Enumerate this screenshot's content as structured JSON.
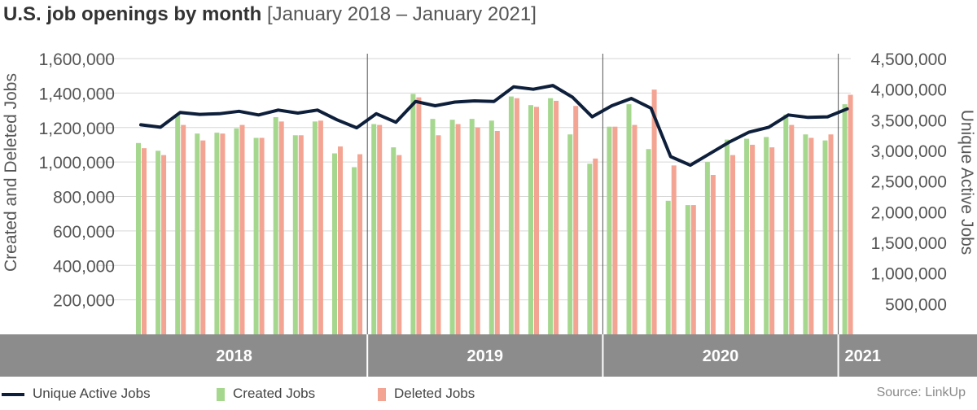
{
  "title": {
    "bold": "U.S. job openings by month",
    "light": "[January 2018 – January 2021]"
  },
  "source": "Source: LinkUp",
  "colors": {
    "created": "#a6d78f",
    "deleted": "#f4a492",
    "line": "#0e1f3b",
    "band": "#8c8c8c",
    "grid": "#d6d6d6",
    "text": "#555555"
  },
  "legend": {
    "line": "Unique Active Jobs",
    "created": "Created Jobs",
    "deleted": "Deleted Jobs"
  },
  "chart_data": {
    "type": "bar",
    "title": "U.S. job openings by month [January 2018 – January 2021]",
    "ylabel": "Created and Deleted Jobs",
    "y2label": "Unique Active Jobs",
    "ylim": [
      0,
      1600000
    ],
    "y2lim": [
      0,
      4500000
    ],
    "yticks": [
      "200,000",
      "400,000",
      "600,000",
      "800,000",
      "1,000,000",
      "1,200,000",
      "1,400,000",
      "1,600,000"
    ],
    "ytick_values": [
      200000,
      400000,
      600000,
      800000,
      1000000,
      1200000,
      1400000,
      1600000
    ],
    "y2ticks": [
      "500,000",
      "1,000,000",
      "1,500,000",
      "2,000,000",
      "2,500,000",
      "3,000,000",
      "3,500,000",
      "4,000,000",
      "4,500,000"
    ],
    "y2tick_values": [
      500000,
      1000000,
      1500000,
      2000000,
      2500000,
      3000000,
      3500000,
      4000000,
      4500000
    ],
    "years": [
      {
        "label": "2018",
        "months": 12
      },
      {
        "label": "2019",
        "months": 12
      },
      {
        "label": "2020",
        "months": 12
      },
      {
        "label": "2021",
        "months": 1
      }
    ],
    "categories": [
      "2018-01",
      "2018-02",
      "2018-03",
      "2018-04",
      "2018-05",
      "2018-06",
      "2018-07",
      "2018-08",
      "2018-09",
      "2018-10",
      "2018-11",
      "2018-12",
      "2019-01",
      "2019-02",
      "2019-03",
      "2019-04",
      "2019-05",
      "2019-06",
      "2019-07",
      "2019-08",
      "2019-09",
      "2019-10",
      "2019-11",
      "2019-12",
      "2020-01",
      "2020-02",
      "2020-03",
      "2020-04",
      "2020-05",
      "2020-06",
      "2020-07",
      "2020-08",
      "2020-09",
      "2020-10",
      "2020-11",
      "2020-12",
      "2021-01"
    ],
    "series": [
      {
        "name": "Created Jobs",
        "type": "bar",
        "values": [
          1110000,
          1065000,
          1280000,
          1165000,
          1170000,
          1195000,
          1140000,
          1260000,
          1155000,
          1235000,
          1050000,
          970000,
          1220000,
          1085000,
          1395000,
          1250000,
          1245000,
          1250000,
          1240000,
          1380000,
          1330000,
          1370000,
          1160000,
          990000,
          1205000,
          1335000,
          1075000,
          775000,
          750000,
          1000000,
          1130000,
          1135000,
          1145000,
          1275000,
          1160000,
          1125000,
          1335000
        ]
      },
      {
        "name": "Deleted Jobs",
        "type": "bar",
        "values": [
          1080000,
          1040000,
          1215000,
          1125000,
          1165000,
          1215000,
          1140000,
          1235000,
          1155000,
          1240000,
          1090000,
          1045000,
          1215000,
          1040000,
          1375000,
          1155000,
          1220000,
          1200000,
          1180000,
          1370000,
          1320000,
          1355000,
          1325000,
          1020000,
          1205000,
          1215000,
          1420000,
          980000,
          750000,
          925000,
          1040000,
          1100000,
          1085000,
          1215000,
          1140000,
          1160000,
          1390000
        ]
      },
      {
        "name": "Unique Active Jobs",
        "type": "line",
        "axis": "right",
        "values": [
          3420000,
          3380000,
          3620000,
          3590000,
          3600000,
          3640000,
          3580000,
          3660000,
          3610000,
          3660000,
          3500000,
          3370000,
          3600000,
          3460000,
          3800000,
          3730000,
          3790000,
          3810000,
          3800000,
          4040000,
          4000000,
          4060000,
          3870000,
          3550000,
          3730000,
          3850000,
          3690000,
          2900000,
          2760000,
          2950000,
          3140000,
          3300000,
          3380000,
          3580000,
          3540000,
          3550000,
          3680000
        ]
      }
    ]
  }
}
